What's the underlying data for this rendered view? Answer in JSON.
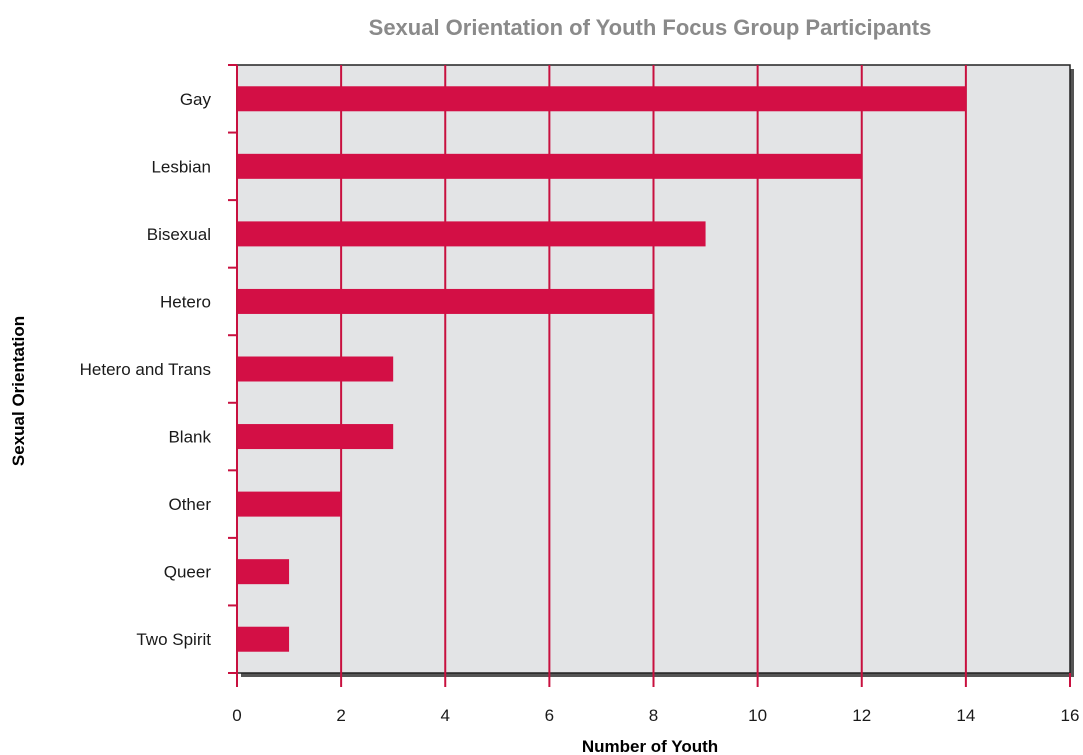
{
  "chart_data": {
    "type": "bar",
    "orientation": "horizontal",
    "title": "Sexual Orientation of Youth Focus Group Participants",
    "xlabel": "Number of Youth",
    "ylabel": "Sexual Orientation",
    "categories": [
      "Gay",
      "Lesbian",
      "Bisexual",
      "Hetero",
      "Hetero and Trans",
      "Blank",
      "Other",
      "Queer",
      "Two Spirit"
    ],
    "values": [
      14,
      12,
      9,
      8,
      3,
      3,
      2,
      1,
      1
    ],
    "xlim": [
      0,
      16
    ],
    "xticks": [
      0,
      2,
      4,
      6,
      8,
      10,
      12,
      14,
      16
    ],
    "grid": true,
    "colors": {
      "bar": "#d30f45",
      "grid": "#c8103f",
      "plot_background": "#e3e4e6",
      "title": "#8a8a8a",
      "shadow": "#555555"
    }
  }
}
